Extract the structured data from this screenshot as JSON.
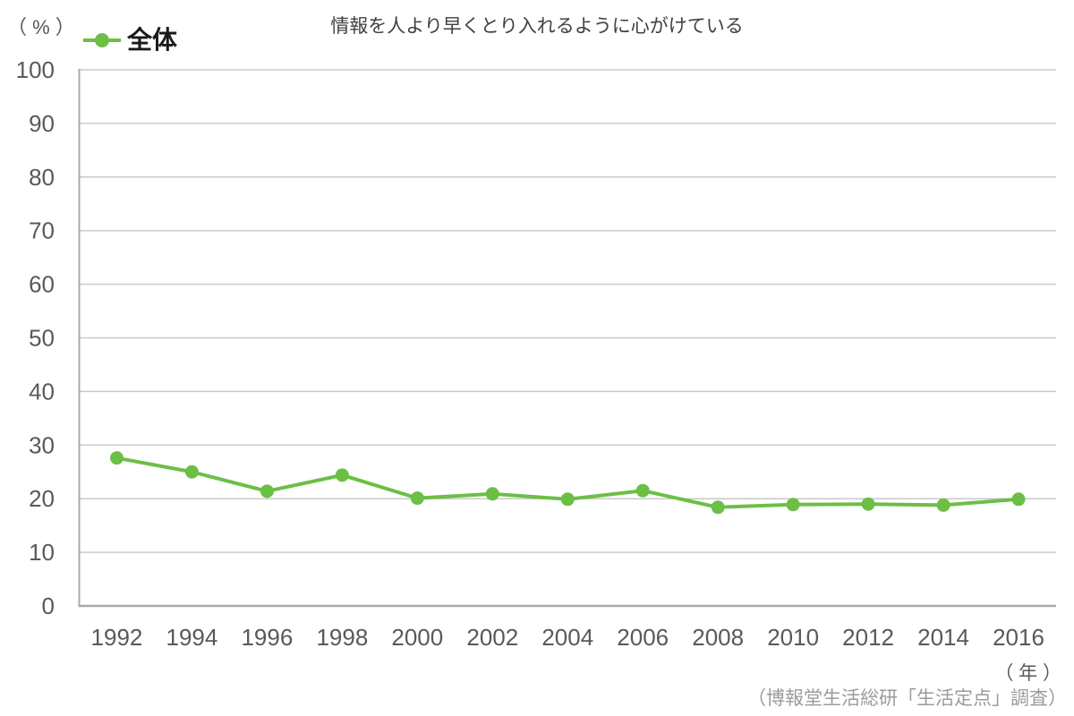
{
  "header": {
    "y_axis_unit": "（ % ）",
    "legend": {
      "label": "全体"
    },
    "title": "情報を人より早くとり入れるように心がけている"
  },
  "footer": {
    "x_axis_unit": "（ 年 ）",
    "source_credit": "（博報堂生活総研「生活定点」調査）"
  },
  "colors": {
    "series_green": "#6cbf45",
    "gridline": "#c9c9c9",
    "axis": "#a9a9a9",
    "tick_text": "#595959",
    "title_text": "#404040",
    "source_text": "#9b9b9b"
  },
  "chart_data": {
    "type": "line",
    "title": "情報を人より早くとり入れるように心がけている",
    "x": [
      1992,
      1994,
      1996,
      1998,
      2000,
      2002,
      2004,
      2006,
      2008,
      2010,
      2012,
      2014,
      2016
    ],
    "series": [
      {
        "name": "全体",
        "color": "#6cbf45",
        "marker": "circle",
        "values": [
          27.6,
          25.0,
          21.4,
          24.4,
          20.1,
          20.9,
          19.9,
          21.5,
          18.4,
          18.9,
          19.0,
          18.8,
          19.9
        ]
      }
    ],
    "xlabel": "（ 年 ）",
    "ylabel": "（ % ）",
    "ylim": [
      0,
      100
    ],
    "ytick_interval": 10,
    "grid": "horizontal",
    "legend_position": "top-left",
    "source": "（博報堂生活総研「生活定点」調査）"
  }
}
